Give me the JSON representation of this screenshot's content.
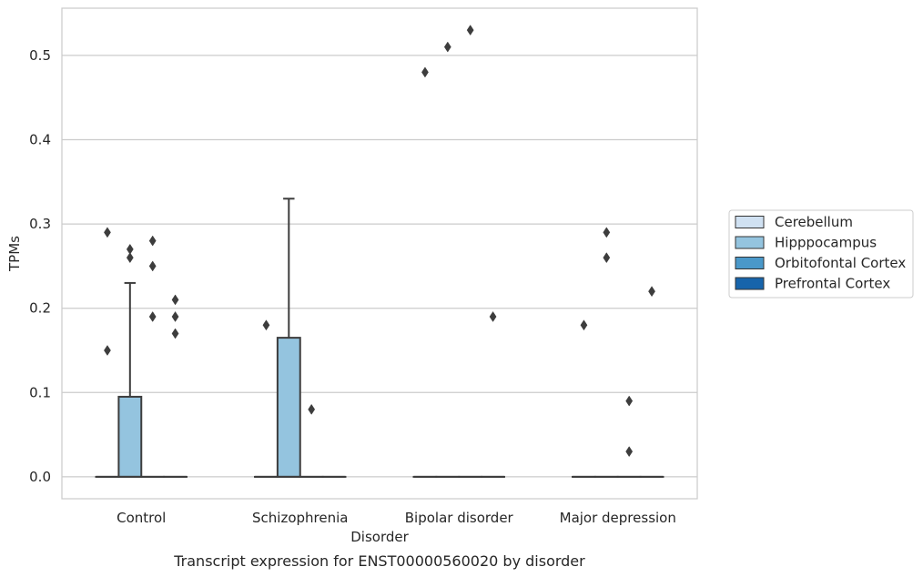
{
  "chart_data": {
    "type": "box",
    "caption": "Transcript expression for ENST00000560020 by disorder",
    "xlabel": "Disorder",
    "ylabel": "TPMs",
    "ylim": [
      -0.026,
      0.556
    ],
    "yticks": [
      0.0,
      0.1,
      0.2,
      0.3,
      0.4,
      0.5
    ],
    "ytick_labels": [
      "0.0",
      "0.1",
      "0.2",
      "0.3",
      "0.4",
      "0.5"
    ],
    "grid": "horizontal",
    "legend_position": "outside-right",
    "categories": [
      "Control",
      "Schizophrenia",
      "Bipolar disorder",
      "Major depression"
    ],
    "series": [
      {
        "name": "Cerebellum",
        "color": "#d0e1f2",
        "boxes": [
          {
            "min": 0,
            "q1": 0,
            "median": 0,
            "q3": 0,
            "max": 0,
            "outliers": [
              0.15,
              0.29
            ]
          },
          {
            "min": 0,
            "q1": 0,
            "median": 0,
            "q3": 0,
            "max": 0,
            "outliers": [
              0.18
            ]
          },
          {
            "min": 0,
            "q1": 0,
            "median": 0,
            "q3": 0,
            "max": 0,
            "outliers": [
              0.48
            ]
          },
          {
            "min": 0,
            "q1": 0,
            "median": 0,
            "q3": 0,
            "max": 0,
            "outliers": [
              0.18
            ]
          }
        ]
      },
      {
        "name": "Hipppocampus",
        "color": "#94c4df",
        "boxes": [
          {
            "min": 0,
            "q1": 0,
            "median": 0,
            "q3": 0.095,
            "max": 0.23,
            "outliers": [
              0.26,
              0.27
            ]
          },
          {
            "min": 0,
            "q1": 0,
            "median": 0,
            "q3": 0.165,
            "max": 0.33,
            "outliers": []
          },
          {
            "min": 0,
            "q1": 0,
            "median": 0,
            "q3": 0,
            "max": 0,
            "outliers": [
              0.51
            ]
          },
          {
            "min": 0,
            "q1": 0,
            "median": 0,
            "q3": 0,
            "max": 0,
            "outliers": [
              0.26,
              0.29
            ]
          }
        ]
      },
      {
        "name": "Orbitofontal Cortex",
        "color": "#4a98c9",
        "boxes": [
          {
            "min": 0,
            "q1": 0,
            "median": 0,
            "q3": 0,
            "max": 0,
            "outliers": [
              0.19,
              0.25,
              0.28
            ]
          },
          {
            "min": 0,
            "q1": 0,
            "median": 0,
            "q3": 0,
            "max": 0,
            "outliers": [
              0.08
            ]
          },
          {
            "min": 0,
            "q1": 0,
            "median": 0,
            "q3": 0,
            "max": 0,
            "outliers": [
              0.53
            ]
          },
          {
            "min": 0,
            "q1": 0,
            "median": 0,
            "q3": 0,
            "max": 0,
            "outliers": [
              0.03,
              0.09
            ]
          }
        ]
      },
      {
        "name": "Prefrontal Cortex",
        "color": "#1764ab",
        "boxes": [
          {
            "min": 0,
            "q1": 0,
            "median": 0,
            "q3": 0,
            "max": 0,
            "outliers": [
              0.17,
              0.19,
              0.21
            ]
          },
          {
            "min": 0,
            "q1": 0,
            "median": 0,
            "q3": 0,
            "max": 0,
            "outliers": []
          },
          {
            "min": 0,
            "q1": 0,
            "median": 0,
            "q3": 0,
            "max": 0,
            "outliers": [
              0.19
            ]
          },
          {
            "min": 0,
            "q1": 0,
            "median": 0,
            "q3": 0,
            "max": 0,
            "outliers": [
              0.22
            ]
          }
        ]
      }
    ]
  }
}
